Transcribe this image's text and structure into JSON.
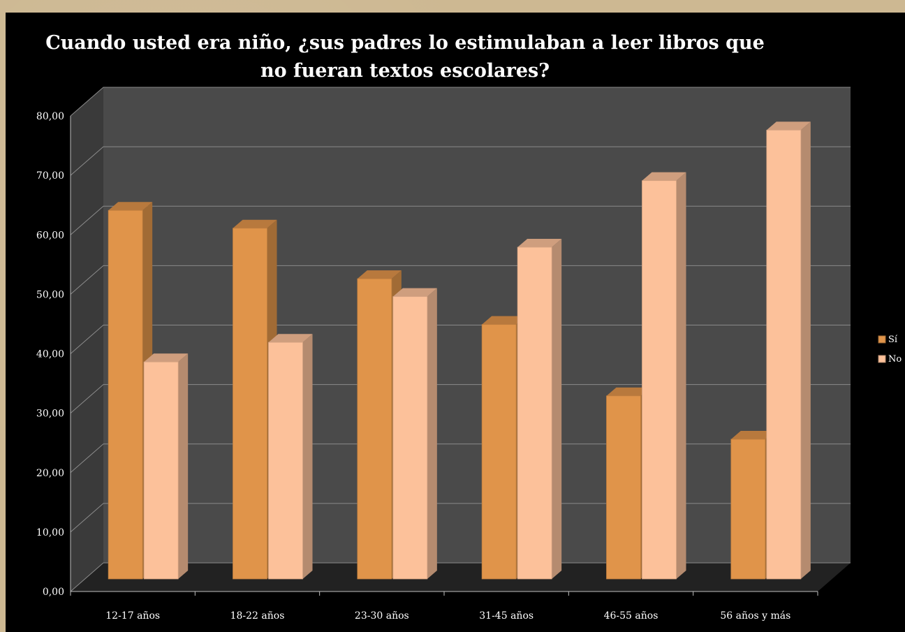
{
  "chart_data": {
    "type": "bar",
    "title_line1": "Cuando usted era niño, ¿sus padres lo estimulaban a leer libros que",
    "title_line2": "no fueran textos escolares?",
    "categories": [
      "12-17 años",
      "18-22 años",
      "23-30 años",
      "31-45 años",
      "46-55 años",
      "56 años y más"
    ],
    "series": [
      {
        "name": "Sí",
        "values": [
          62.0,
          59.0,
          50.5,
          42.8,
          30.8,
          23.5
        ],
        "color": "#e0944a"
      },
      {
        "name": "No",
        "values": [
          36.5,
          39.8,
          47.5,
          55.8,
          67.0,
          75.5
        ],
        "color": "#fcc19a"
      }
    ],
    "yticks": [
      "0,00",
      "10,00",
      "20,00",
      "30,00",
      "40,00",
      "50,00",
      "60,00",
      "70,00",
      "80,00"
    ],
    "ylim": [
      0,
      80
    ],
    "grid": true,
    "legend_position": "right",
    "colors": {
      "background": "#000000",
      "back_wall": "#4a4a4a",
      "side_wall": "#3a3a3a",
      "floor": "#222222",
      "gridline": "#8a8a8a",
      "text": "#ffffff"
    }
  }
}
